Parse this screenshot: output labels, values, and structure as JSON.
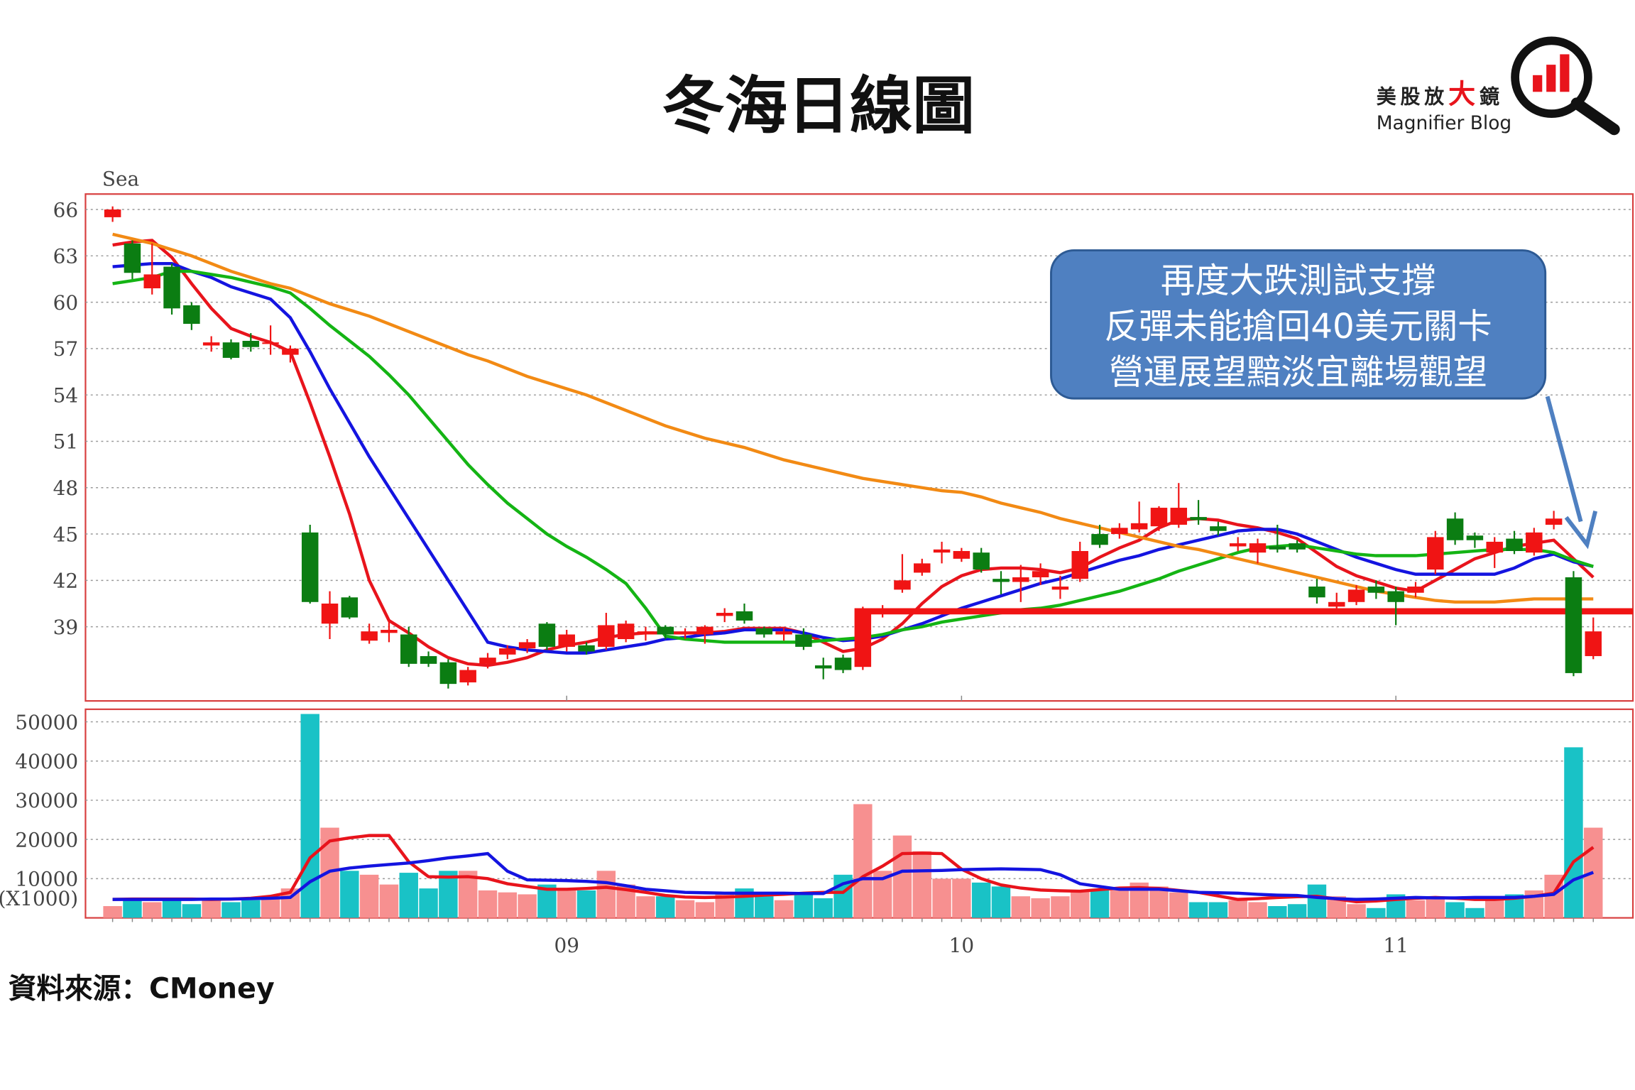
{
  "header": {
    "title": "冬海日線圖",
    "logo_parts": [
      "美股放",
      "大",
      "鏡"
    ],
    "logo_en": "Magnifier Blog"
  },
  "source": "資料來源：CMoney",
  "chart_data": [
    {
      "type": "candlestick",
      "label": "Sea",
      "categories": [
        null,
        null,
        null,
        null,
        null,
        null,
        null,
        null,
        null,
        null,
        null,
        null,
        null,
        null,
        null,
        null,
        null,
        null,
        null,
        null,
        null,
        null,
        null,
        "09",
        null,
        null,
        null,
        null,
        null,
        null,
        null,
        null,
        null,
        null,
        null,
        null,
        null,
        null,
        null,
        null,
        null,
        null,
        null,
        "10",
        null,
        null,
        null,
        null,
        null,
        null,
        null,
        null,
        null,
        null,
        null,
        null,
        null,
        null,
        null,
        null,
        null,
        null,
        null,
        null,
        null,
        "11",
        null,
        null,
        null,
        null,
        null,
        null,
        null,
        null,
        null,
        null
      ],
      "open": [
        65.5,
        63.8,
        60.9,
        62.3,
        59.8,
        57.2,
        57.4,
        57.5,
        57.3,
        56.6,
        45.1,
        39.2,
        40.9,
        38.1,
        38.6,
        38.5,
        37.1,
        36.7,
        35.4,
        36.6,
        37.2,
        37.6,
        39.2,
        37.7,
        37.8,
        37.7,
        38.2,
        38.5,
        39.0,
        38.5,
        38.5,
        39.7,
        40.0,
        38.9,
        38.5,
        38.5,
        36.5,
        37.0,
        36.4,
        39.9,
        41.4,
        42.5,
        43.8,
        43.4,
        43.8,
        42.1,
        41.9,
        42.2,
        41.4,
        42.1,
        45.0,
        45.0,
        45.3,
        45.5,
        45.6,
        46.1,
        45.5,
        44.2,
        43.8,
        44.2,
        44.4,
        41.6,
        40.3,
        40.6,
        41.6,
        41.3,
        41.2,
        42.7,
        46.0,
        44.9,
        43.8,
        44.7,
        43.8,
        45.6,
        42.2,
        37.1
      ],
      "high": [
        66.2,
        64.0,
        63.8,
        62.5,
        60.0,
        57.8,
        57.6,
        58.0,
        58.5,
        57.2,
        45.6,
        41.3,
        41.0,
        39.2,
        39.4,
        39.0,
        37.4,
        36.9,
        36.4,
        37.3,
        37.8,
        38.2,
        39.3,
        38.8,
        38.0,
        39.9,
        39.4,
        39.0,
        39.1,
        38.9,
        39.1,
        40.2,
        40.5,
        39.0,
        38.9,
        38.9,
        37.0,
        37.2,
        40.3,
        40.4,
        43.7,
        43.4,
        44.5,
        44.1,
        44.1,
        42.6,
        43.0,
        43.1,
        42.3,
        44.5,
        45.6,
        45.7,
        47.1,
        46.8,
        48.3,
        47.2,
        45.8,
        44.8,
        44.7,
        45.6,
        44.6,
        42.1,
        41.2,
        41.7,
        42.0,
        41.6,
        41.9,
        45.2,
        46.4,
        45.1,
        44.8,
        45.2,
        45.4,
        46.5,
        42.6,
        39.6
      ],
      "low": [
        65.2,
        61.5,
        60.5,
        59.2,
        58.2,
        56.8,
        56.3,
        56.8,
        56.6,
        56.1,
        40.5,
        38.2,
        39.5,
        37.9,
        38.0,
        36.4,
        36.4,
        35.0,
        35.2,
        36.3,
        36.9,
        37.3,
        37.5,
        37.4,
        37.2,
        37.5,
        38.0,
        38.1,
        38.2,
        38.2,
        37.9,
        39.3,
        39.2,
        38.3,
        38.1,
        37.5,
        35.6,
        36.0,
        36.2,
        39.6,
        41.2,
        42.3,
        43.1,
        43.2,
        42.5,
        41.1,
        40.6,
        41.7,
        40.8,
        41.9,
        44.1,
        44.7,
        45.1,
        45.2,
        45.4,
        45.6,
        44.9,
        43.9,
        43.1,
        43.8,
        43.8,
        40.5,
        40.1,
        40.4,
        40.8,
        39.1,
        40.9,
        42.4,
        44.3,
        44.1,
        42.8,
        43.7,
        43.6,
        45.3,
        35.8,
        36.9
      ],
      "close": [
        66.0,
        61.9,
        61.8,
        59.6,
        58.6,
        57.4,
        56.4,
        57.1,
        57.4,
        57.0,
        40.6,
        40.5,
        39.6,
        38.7,
        38.8,
        36.6,
        36.6,
        35.3,
        36.2,
        37.0,
        37.6,
        38.0,
        37.7,
        38.5,
        37.4,
        39.1,
        39.2,
        38.7,
        38.5,
        38.6,
        39.0,
        39.9,
        39.4,
        38.5,
        38.7,
        37.7,
        36.3,
        36.2,
        40.2,
        40.1,
        42.0,
        43.1,
        44.0,
        43.9,
        42.7,
        41.9,
        42.2,
        42.6,
        41.6,
        43.9,
        44.3,
        45.4,
        45.7,
        46.7,
        46.7,
        45.9,
        45.2,
        44.4,
        44.4,
        44.0,
        44.0,
        40.9,
        40.6,
        41.4,
        41.2,
        40.6,
        41.6,
        44.8,
        44.6,
        44.6,
        44.5,
        43.9,
        45.1,
        46.0,
        36.0,
        38.7
      ],
      "up_color": "#f01414",
      "down_color": "#0b7d12",
      "ylim": [
        34.2,
        67
      ],
      "yticks": [
        39,
        42,
        45,
        48,
        51,
        54,
        57,
        60,
        63,
        66
      ],
      "grid": true,
      "lines": [
        {
          "color": "#e8141c",
          "values": [
            63.7,
            63.9,
            64.0,
            62.9,
            61.2,
            59.6,
            58.3,
            57.8,
            57.4,
            56.8,
            53.5,
            50.0,
            46.3,
            42.0,
            39.4,
            38.6,
            37.7,
            37.0,
            36.6,
            36.5,
            36.7,
            37.0,
            37.5,
            37.8,
            38.0,
            38.3,
            38.5,
            38.6,
            38.6,
            38.6,
            38.6,
            38.7,
            38.9,
            38.9,
            38.9,
            38.6,
            38.0,
            37.4,
            37.6,
            38.2,
            39.2,
            40.5,
            41.6,
            42.3,
            42.7,
            42.8,
            42.8,
            42.7,
            42.5,
            42.8,
            43.5,
            44.1,
            44.6,
            45.4,
            45.9,
            46.0,
            45.9,
            45.6,
            45.4,
            45.1,
            44.7,
            43.8,
            42.9,
            42.3,
            41.9,
            41.5,
            41.3,
            42.0,
            42.7,
            43.4,
            43.8,
            44.2,
            44.4,
            44.6,
            43.4,
            42.2
          ]
        },
        {
          "color": "#1414e0",
          "values": [
            62.3,
            62.4,
            62.5,
            62.5,
            62.0,
            61.6,
            61.0,
            60.6,
            60.2,
            59.0,
            56.8,
            54.4,
            52.2,
            50.0,
            48.0,
            46.0,
            44.0,
            42.0,
            40.0,
            38.0,
            37.7,
            37.5,
            37.4,
            37.3,
            37.3,
            37.5,
            37.7,
            37.9,
            38.2,
            38.3,
            38.5,
            38.6,
            38.8,
            38.8,
            38.8,
            38.6,
            38.3,
            38.1,
            38.2,
            38.4,
            38.8,
            39.2,
            39.7,
            40.2,
            40.6,
            41.0,
            41.4,
            41.8,
            42.1,
            42.5,
            42.9,
            43.3,
            43.6,
            44.0,
            44.3,
            44.6,
            44.9,
            45.2,
            45.3,
            45.3,
            45.0,
            44.5,
            44.0,
            43.5,
            43.1,
            42.7,
            42.4,
            42.4,
            42.4,
            42.4,
            42.4,
            42.8,
            43.4,
            43.7,
            43.2,
            42.9
          ]
        },
        {
          "color": "#14b414",
          "values": [
            61.2,
            61.4,
            61.6,
            62.0,
            62.0,
            61.8,
            61.6,
            61.3,
            61.0,
            60.6,
            59.6,
            58.5,
            57.5,
            56.5,
            55.3,
            54.0,
            52.5,
            51.0,
            49.5,
            48.2,
            47.0,
            46.0,
            45.0,
            44.2,
            43.5,
            42.7,
            41.8,
            40.2,
            38.4,
            38.2,
            38.1,
            38.0,
            38.0,
            38.0,
            38.0,
            38.0,
            38.1,
            38.2,
            38.3,
            38.5,
            38.8,
            39.0,
            39.3,
            39.5,
            39.7,
            39.9,
            40.1,
            40.2,
            40.4,
            40.7,
            41.0,
            41.3,
            41.7,
            42.1,
            42.6,
            43.0,
            43.4,
            43.8,
            44.1,
            44.2,
            44.3,
            44.1,
            43.9,
            43.7,
            43.6,
            43.6,
            43.6,
            43.7,
            43.8,
            43.9,
            44.0,
            44.0,
            44.0,
            43.8,
            43.3,
            42.9
          ]
        },
        {
          "color": "#f28a14",
          "values": [
            64.4,
            64.1,
            63.8,
            63.4,
            63.0,
            62.5,
            62.0,
            61.6,
            61.2,
            60.9,
            60.4,
            59.9,
            59.5,
            59.1,
            58.6,
            58.1,
            57.6,
            57.1,
            56.6,
            56.2,
            55.7,
            55.2,
            54.8,
            54.4,
            54.0,
            53.5,
            53.0,
            52.5,
            52.0,
            51.6,
            51.2,
            50.9,
            50.6,
            50.2,
            49.8,
            49.5,
            49.2,
            48.9,
            48.6,
            48.4,
            48.2,
            48.0,
            47.8,
            47.7,
            47.4,
            47.0,
            46.7,
            46.4,
            46.0,
            45.7,
            45.4,
            45.1,
            44.8,
            44.5,
            44.2,
            44.0,
            43.7,
            43.4,
            43.1,
            42.8,
            42.5,
            42.2,
            41.9,
            41.6,
            41.3,
            41.1,
            40.9,
            40.7,
            40.6,
            40.6,
            40.6,
            40.7,
            40.8,
            40.8,
            40.8,
            40.8
          ]
        }
      ],
      "hline": {
        "value": 40,
        "start": 38,
        "color": "#f01414"
      },
      "annotation": [
        "再度大跌測試支撐",
        "反彈未能搶回40美元關卡",
        "營運展望黯淡宜離場觀望"
      ]
    },
    {
      "type": "volume",
      "unit_label": "(X1000)",
      "values": [
        3000,
        4500,
        4000,
        4500,
        3500,
        4500,
        4000,
        4500,
        5500,
        7500,
        52000,
        23000,
        12000,
        11000,
        8500,
        11500,
        7500,
        12000,
        12000,
        7000,
        6500,
        6000,
        8500,
        7000,
        7000,
        12000,
        8500,
        5500,
        5500,
        4500,
        4000,
        6000,
        7500,
        5500,
        4500,
        6000,
        5000,
        11000,
        29000,
        12000,
        21000,
        17000,
        10000,
        10000,
        9000,
        8000,
        5500,
        5000,
        5500,
        7000,
        7000,
        7500,
        9000,
        8000,
        6500,
        4000,
        4000,
        4500,
        4000,
        3000,
        3500,
        8500,
        5500,
        3500,
        2500,
        6000,
        4500,
        5500,
        4000,
        2500,
        4500,
        6000,
        7000,
        11000,
        43500,
        23000
      ],
      "up_color": "#f79090",
      "down_color": "#19c2c6",
      "ylim": [
        0,
        53200
      ],
      "yticks": [
        10000,
        20000,
        30000,
        40000,
        50000
      ],
      "grid": true,
      "lines": [
        {
          "color": "#e8141c",
          "values": [
            4700,
            4800,
            4800,
            4800,
            4800,
            4700,
            4800,
            5000,
            5500,
            6500,
            15300,
            19600,
            20400,
            21000,
            21000,
            14300,
            10500,
            10400,
            10500,
            10000,
            8700,
            8000,
            7300,
            7300,
            7500,
            7800,
            7200,
            6500,
            5700,
            5300,
            5200,
            5300,
            5500,
            5800,
            6000,
            6300,
            6500,
            6500,
            10500,
            13200,
            16400,
            16500,
            16400,
            12400,
            10000,
            8400,
            7600,
            7100,
            6900,
            6800,
            7200,
            7600,
            7700,
            7500,
            7000,
            6500,
            5600,
            4700,
            4900,
            5200,
            5400,
            5500,
            4800,
            4100,
            4300,
            4700,
            5000,
            5200,
            5000,
            4700,
            4700,
            5000,
            5500,
            6300,
            14300,
            18000
          ]
        },
        {
          "color": "#1414e0",
          "values": [
            4700,
            4700,
            4700,
            4700,
            4700,
            4800,
            4800,
            4900,
            5000,
            5200,
            9200,
            11900,
            12700,
            13200,
            13600,
            14000,
            14600,
            15300,
            15800,
            16400,
            11900,
            9700,
            9600,
            9500,
            9300,
            9000,
            8200,
            7300,
            6900,
            6500,
            6400,
            6300,
            6300,
            6300,
            6300,
            6200,
            6200,
            8700,
            10000,
            10000,
            11900,
            12000,
            12100,
            12300,
            12400,
            12500,
            12400,
            12300,
            11000,
            8700,
            8000,
            7300,
            7300,
            7300,
            6900,
            6500,
            6400,
            6300,
            6000,
            5800,
            5700,
            5200,
            4900,
            4700,
            4800,
            5000,
            5200,
            5100,
            5100,
            5200,
            5200,
            5200,
            5500,
            6000,
            9700,
            11600
          ]
        }
      ]
    }
  ]
}
